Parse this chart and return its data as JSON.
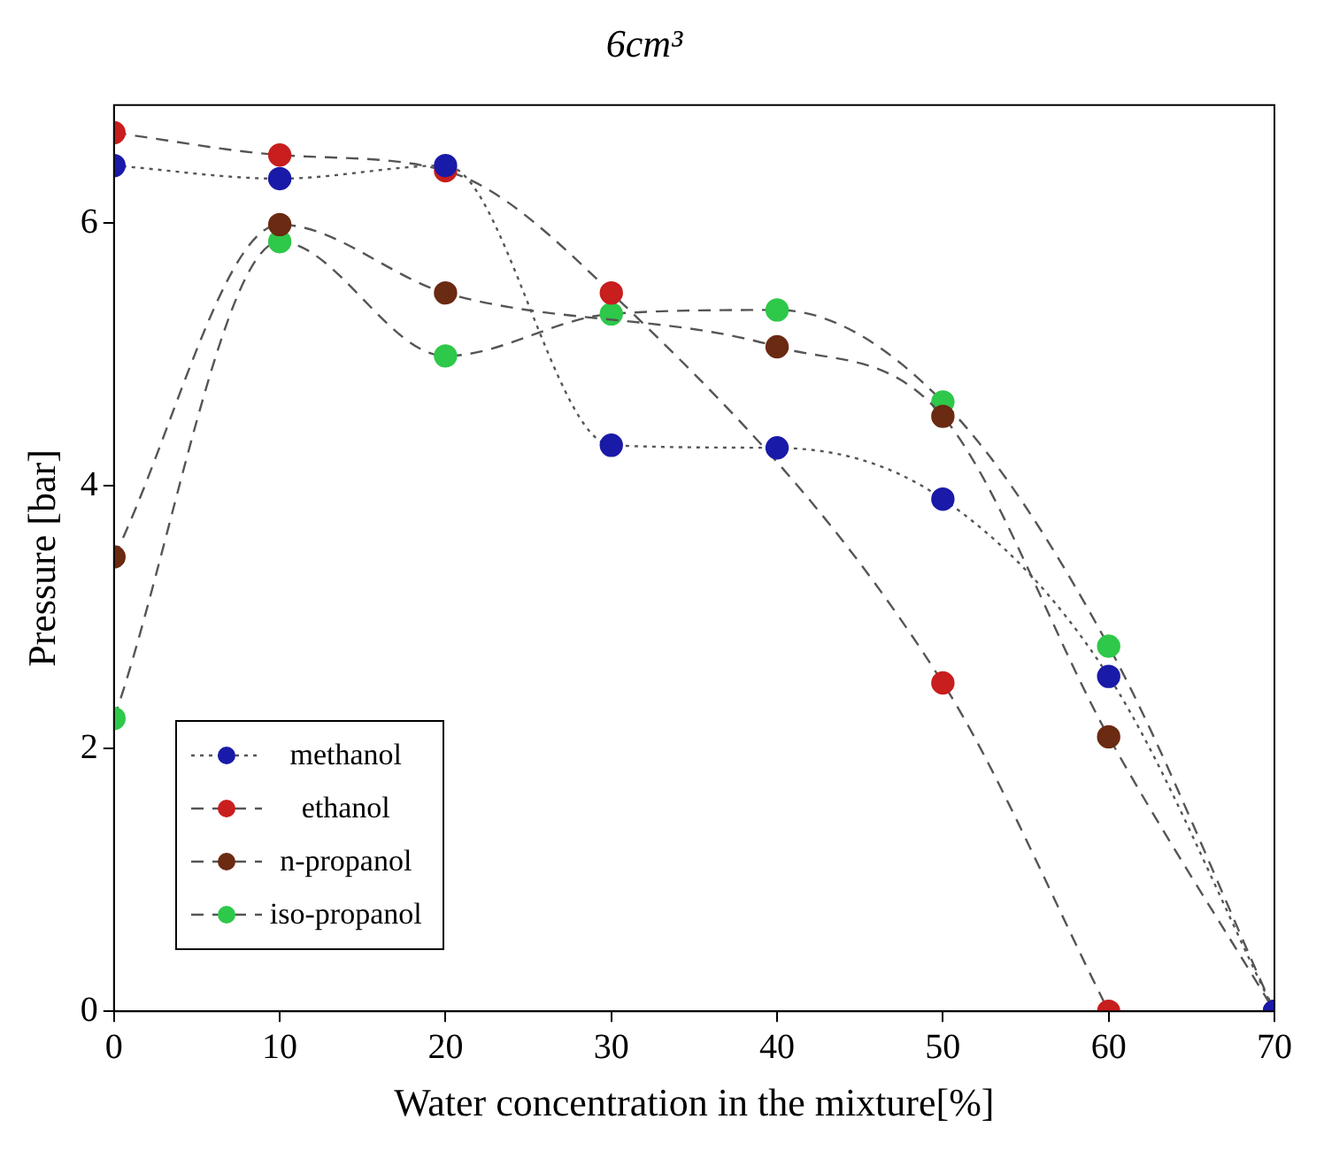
{
  "chart_data": {
    "type": "line",
    "title": "6cm³",
    "xlabel": "Water concentration in the mixture[%]",
    "ylabel": "Pressure [bar]",
    "x": [
      0,
      10,
      20,
      30,
      40,
      50,
      60,
      70
    ],
    "series": [
      {
        "name": "methanol",
        "color": "#1a1aa8",
        "line_style": "dotted",
        "values": [
          6.44,
          6.34,
          6.44,
          4.31,
          4.29,
          3.9,
          2.55,
          0
        ]
      },
      {
        "name": "ethanol",
        "color": "#c81e1e",
        "line_style": "dashed",
        "values": [
          6.69,
          6.52,
          6.4,
          5.47,
          null,
          2.5,
          0,
          null
        ]
      },
      {
        "name": "n-propanol",
        "color": "#6b2a12",
        "line_style": "dashed",
        "values": [
          3.46,
          5.99,
          5.47,
          null,
          5.06,
          4.53,
          2.09,
          0
        ]
      },
      {
        "name": "iso-propanol",
        "color": "#2ec84a",
        "line_style": "dashed",
        "values": [
          2.23,
          5.86,
          4.99,
          5.31,
          5.34,
          4.64,
          2.78,
          0
        ]
      }
    ],
    "xlim": [
      0,
      70
    ],
    "xticks": [
      0,
      10,
      20,
      30,
      40,
      50,
      60,
      70
    ],
    "ylim": [
      0,
      6.9
    ],
    "yticks": [
      0,
      2,
      4,
      6
    ],
    "grid": false,
    "legend": "bottom left",
    "marker": "circle"
  }
}
